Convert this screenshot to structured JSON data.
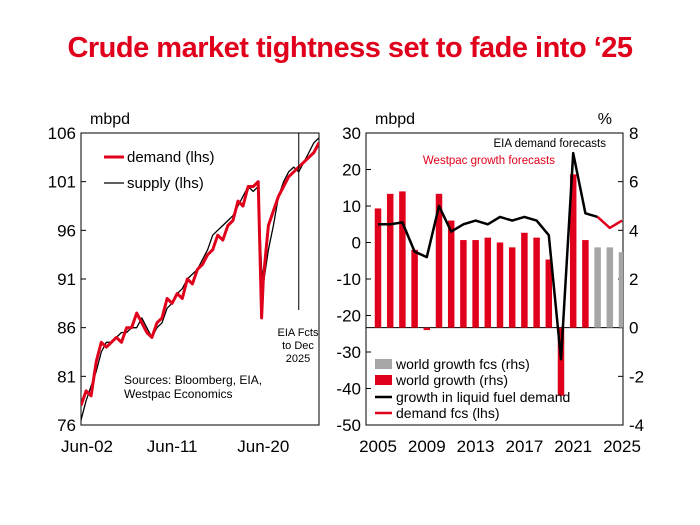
{
  "title": "Crude market tightness set to fade into ‘25",
  "colors": {
    "title": "#e0001b",
    "red": "#e0001b",
    "grey": "#a6a6a6",
    "black": "#000000"
  },
  "chart_data": [
    {
      "type": "line",
      "unit_label": "mbpd",
      "ylim": [
        76,
        106
      ],
      "yticks": [
        76,
        81,
        86,
        91,
        96,
        101,
        106
      ],
      "xlim": [
        "2002-06",
        "2025-12"
      ],
      "xticks": [
        "Jun-02",
        "Jun-11",
        "Jun-20"
      ],
      "legend": [
        "demand (lhs)",
        "supply (lhs)"
      ],
      "annotation": [
        "EIA Fcts",
        "to Dec",
        "2025"
      ],
      "annotation_x": "2023-12",
      "source": [
        "Sources: Bloomberg, EIA,",
        "Westpac Economics"
      ],
      "series": [
        {
          "name": "demand (lhs)",
          "color": "#e0001b",
          "x": [
            "2002-06",
            "2002-12",
            "2003-06",
            "2003-12",
            "2004-06",
            "2004-12",
            "2005-06",
            "2005-12",
            "2006-06",
            "2006-12",
            "2007-06",
            "2007-12",
            "2008-06",
            "2008-12",
            "2009-06",
            "2009-12",
            "2010-06",
            "2010-12",
            "2011-06",
            "2011-12",
            "2012-06",
            "2012-12",
            "2013-06",
            "2013-12",
            "2014-06",
            "2014-12",
            "2015-06",
            "2015-12",
            "2016-06",
            "2016-12",
            "2017-06",
            "2017-12",
            "2018-06",
            "2018-12",
            "2019-06",
            "2019-12",
            "2020-04",
            "2020-06",
            "2020-12",
            "2021-06",
            "2021-12",
            "2022-06",
            "2022-12",
            "2023-06",
            "2023-12",
            "2024-06",
            "2024-12",
            "2025-06",
            "2025-12"
          ],
          "y": [
            78,
            79.5,
            79,
            82.5,
            84.5,
            84,
            84.5,
            85,
            84.5,
            86,
            86,
            87.5,
            86.5,
            85.5,
            85,
            86.5,
            87,
            89,
            88.5,
            89.5,
            89,
            91,
            90.5,
            92,
            92.5,
            93.5,
            94,
            95.5,
            95,
            96.5,
            97,
            99,
            98.5,
            100.5,
            100.5,
            101,
            87,
            91,
            96.5,
            98,
            99.5,
            100.5,
            101.5,
            102,
            102.5,
            103,
            103.5,
            104,
            105
          ]
        },
        {
          "name": "supply (lhs)",
          "color": "#000000",
          "x": [
            "2002-06",
            "2002-12",
            "2003-06",
            "2003-12",
            "2004-06",
            "2004-12",
            "2005-06",
            "2005-12",
            "2006-06",
            "2006-12",
            "2007-06",
            "2007-12",
            "2008-06",
            "2008-12",
            "2009-06",
            "2009-12",
            "2010-06",
            "2010-12",
            "2011-06",
            "2011-12",
            "2012-06",
            "2012-12",
            "2013-06",
            "2013-12",
            "2014-06",
            "2014-12",
            "2015-06",
            "2015-12",
            "2016-06",
            "2016-12",
            "2017-06",
            "2017-12",
            "2018-06",
            "2018-12",
            "2019-06",
            "2019-12",
            "2020-04",
            "2020-06",
            "2020-12",
            "2021-06",
            "2021-12",
            "2022-06",
            "2022-12",
            "2023-06",
            "2023-12",
            "2024-06",
            "2024-12",
            "2025-06",
            "2025-12"
          ],
          "y": [
            76.5,
            78.5,
            80,
            81.5,
            83.5,
            84.5,
            84.5,
            85,
            85.5,
            85.5,
            86,
            86,
            87,
            86,
            85,
            86,
            86.5,
            88,
            88.5,
            89.5,
            90,
            91,
            91.5,
            92,
            93,
            94,
            95.5,
            96,
            96.5,
            97,
            97.5,
            98.5,
            99.5,
            100.5,
            100,
            100.5,
            92,
            90.5,
            94,
            96.5,
            99.5,
            101,
            102,
            102.5,
            102,
            103,
            104,
            105,
            105.5
          ]
        }
      ]
    },
    {
      "type": "bar",
      "unit_label_left": "mbpd",
      "unit_label_right": "%",
      "ylim_left": [
        -50,
        30
      ],
      "yticks_left": [
        -50,
        -40,
        -30,
        -20,
        -10,
        0,
        10,
        20,
        30
      ],
      "ylim_right": [
        -4,
        8
      ],
      "yticks_right": [
        -4,
        -2,
        0,
        2,
        4,
        6,
        8
      ],
      "xlim": [
        2005,
        2025
      ],
      "xticks": [
        2005,
        2009,
        2013,
        2017,
        2021,
        2025
      ],
      "annotations": [
        "EIA demand forecasts",
        "Westpac growth forecasts"
      ],
      "legend": [
        "world growth fcs (rhs)",
        "world growth (rhs)",
        "growth in liquid fuel demand",
        "demand fcs (lhs)"
      ],
      "series": [
        {
          "name": "world growth (rhs)",
          "color": "#e0001b",
          "x": [
            2005,
            2006,
            2007,
            2008,
            2009,
            2010,
            2011,
            2012,
            2013,
            2014,
            2015,
            2016,
            2017,
            2018,
            2019,
            2020,
            2021,
            2022
          ],
          "y": [
            4.9,
            5.5,
            5.6,
            3.2,
            -0.1,
            5.5,
            4.4,
            3.6,
            3.6,
            3.7,
            3.5,
            3.3,
            3.9,
            3.7,
            2.8,
            -2.8,
            6.3,
            3.6
          ]
        },
        {
          "name": "world growth fcs (rhs)",
          "color": "#a6a6a6",
          "x": [
            2023,
            2024,
            2025
          ],
          "y": [
            3.3,
            3.3,
            3.1
          ]
        },
        {
          "name": "growth in liquid fuel demand",
          "color": "#000000",
          "x": [
            2005,
            2006,
            2007,
            2008,
            2009,
            2010,
            2011,
            2012,
            2013,
            2014,
            2015,
            2016,
            2017,
            2018,
            2019,
            2020,
            2021,
            2022,
            2023
          ],
          "y": [
            5,
            5,
            5.5,
            -2.5,
            -4,
            10,
            3,
            5,
            6,
            5,
            7,
            6,
            7,
            6,
            2,
            -32,
            24.5,
            8,
            7
          ]
        },
        {
          "name": "demand fcs (lhs)",
          "color": "#e0001b",
          "x": [
            2023,
            2024,
            2025
          ],
          "y": [
            7,
            4,
            6
          ]
        }
      ]
    }
  ]
}
